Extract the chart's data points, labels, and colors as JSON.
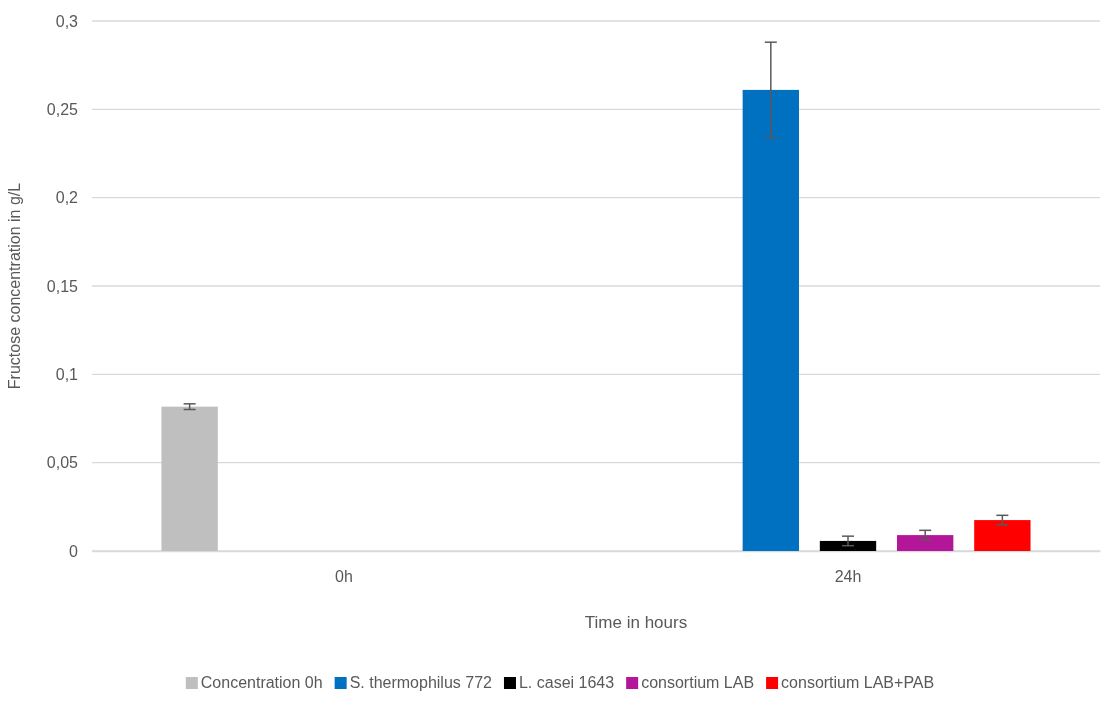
{
  "chart_data": {
    "type": "bar",
    "xlabel": "Time in hours",
    "ylabel": "Fructose concentration in g/L",
    "categories": [
      "0h",
      "24h"
    ],
    "series": [
      {
        "name": "Concentration 0h",
        "color": "#bfbfbf",
        "values": [
          0.0817,
          null
        ],
        "errors": [
          0.0016,
          null
        ]
      },
      {
        "name": "S. thermophilus 772",
        "color": "#0070c0",
        "values": [
          null,
          0.261
        ],
        "errors": [
          null,
          [
            0.234,
            0.288
          ]
        ]
      },
      {
        "name": "L. casei 1643",
        "color": "#000000",
        "values": [
          null,
          0.0057
        ],
        "errors": [
          null,
          0.0027
        ]
      },
      {
        "name": "consortium LAB",
        "color": "#b4169a",
        "values": [
          null,
          0.009
        ],
        "errors": [
          null,
          0.0027
        ]
      },
      {
        "name": "consortium LAB+PAB",
        "color": "#ff0000",
        "values": [
          null,
          0.0175
        ],
        "errors": [
          null,
          0.0027
        ]
      }
    ],
    "ylim": [
      0,
      0.3
    ],
    "yticks": [
      0,
      {
        "value": 0.05,
        "label": "0,05"
      },
      {
        "value": 0.1,
        "label": "0,1"
      },
      {
        "value": 0.15,
        "label": "0,15"
      },
      {
        "value": 0.2,
        "label": "0,2"
      },
      {
        "value": 0.25,
        "label": "0,25"
      },
      {
        "value": 0.3,
        "label": "0,3"
      }
    ],
    "grid": "y",
    "legend": "bottom"
  }
}
